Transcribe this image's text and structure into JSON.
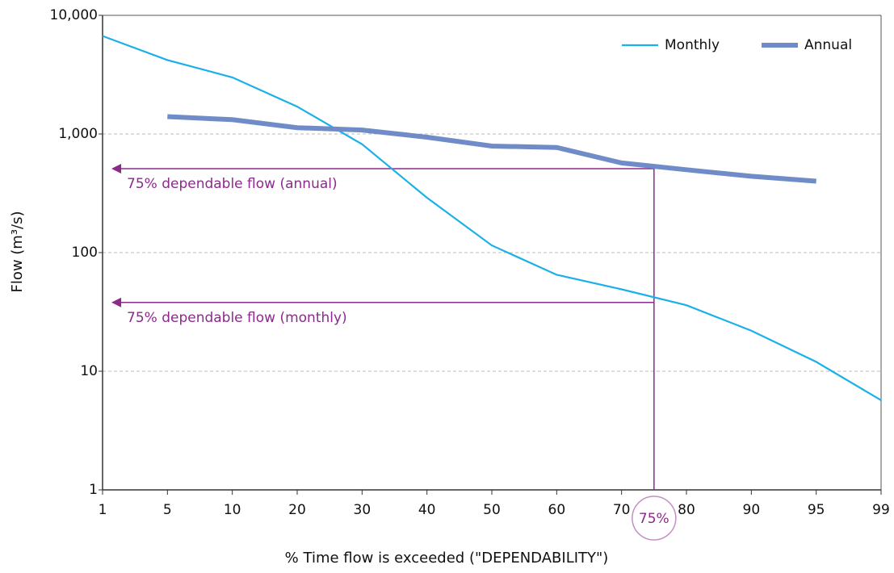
{
  "chart_data": {
    "type": "line",
    "x_label": "% Time flow is exceeded (\"DEPENDABILITY\")",
    "y_label": "Flow (m³/s)",
    "categories": [
      "1",
      "5",
      "10",
      "20",
      "30",
      "40",
      "50",
      "60",
      "70",
      "80",
      "90",
      "95",
      "99"
    ],
    "series": [
      {
        "name": "Monthly",
        "color": "#1ab0e8",
        "values": [
          6700,
          4200,
          3000,
          1700,
          820,
          290,
          115,
          65,
          49,
          36,
          22,
          12,
          5.7
        ]
      },
      {
        "name": "Annual",
        "color": "#6f8cc8",
        "values": [
          null,
          1400,
          1320,
          1130,
          1080,
          940,
          790,
          770,
          570,
          500,
          440,
          400,
          null
        ]
      }
    ],
    "y_scale": "log",
    "ylim": [
      1,
      10000
    ],
    "yticks": [
      1,
      10,
      100,
      {
        "value": 1000,
        "label": "1,000"
      },
      {
        "value": 10000,
        "label": "10,000"
      }
    ],
    "grid": true,
    "legend": "top-right",
    "annotations": [
      {
        "text": "75% dependable flow (annual)",
        "y": 510
      },
      {
        "text": "75% dependable flow (monthly)",
        "y": 38
      }
    ],
    "annotation_color": "#8b2a8b",
    "marker_label": "75%"
  }
}
